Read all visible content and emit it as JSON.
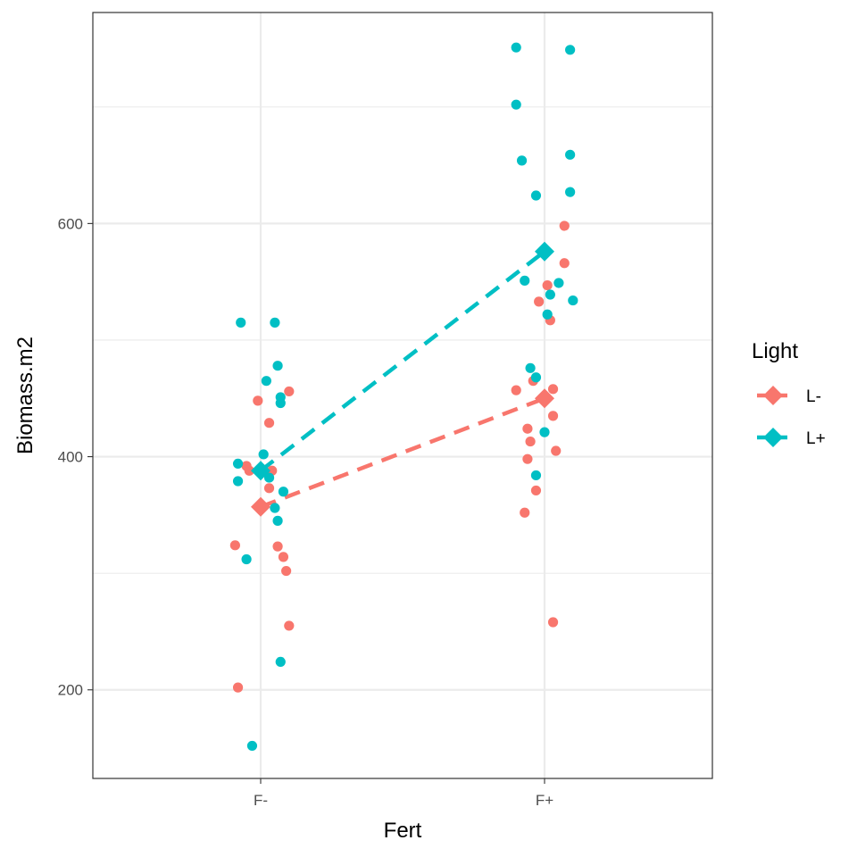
{
  "chart_data": {
    "type": "scatter",
    "title": "",
    "xlabel": "Fert",
    "ylabel": "Biomass.m2",
    "categories": [
      "F-",
      "F+"
    ],
    "ylim": [
      124,
      781
    ],
    "y_ticks": [
      200,
      400,
      600
    ],
    "y_minor_ticks": [
      300,
      500,
      700
    ],
    "grid": true,
    "legend": {
      "title": "Light",
      "placement": "right",
      "entries": [
        "L-",
        "L+"
      ]
    },
    "series": [
      {
        "name": "L-",
        "color": "#F8766D",
        "points": [
          {
            "x": "F-",
            "jitter": -0.09,
            "y": 324
          },
          {
            "x": "F-",
            "jitter": -0.08,
            "y": 202
          },
          {
            "x": "F-",
            "jitter": -0.05,
            "y": 392
          },
          {
            "x": "F-",
            "jitter": -0.04,
            "y": 388
          },
          {
            "x": "F-",
            "jitter": -0.01,
            "y": 448
          },
          {
            "x": "F-",
            "jitter": 0.03,
            "y": 373
          },
          {
            "x": "F-",
            "jitter": 0.03,
            "y": 429
          },
          {
            "x": "F-",
            "jitter": 0.04,
            "y": 388
          },
          {
            "x": "F-",
            "jitter": 0.06,
            "y": 323
          },
          {
            "x": "F-",
            "jitter": 0.08,
            "y": 314
          },
          {
            "x": "F-",
            "jitter": 0.09,
            "y": 302
          },
          {
            "x": "F-",
            "jitter": 0.1,
            "y": 456
          },
          {
            "x": "F-",
            "jitter": 0.1,
            "y": 255
          },
          {
            "x": "F+",
            "jitter": -0.1,
            "y": 457
          },
          {
            "x": "F+",
            "jitter": -0.07,
            "y": 352
          },
          {
            "x": "F+",
            "jitter": -0.06,
            "y": 424
          },
          {
            "x": "F+",
            "jitter": -0.06,
            "y": 398
          },
          {
            "x": "F+",
            "jitter": -0.05,
            "y": 413
          },
          {
            "x": "F+",
            "jitter": -0.04,
            "y": 465
          },
          {
            "x": "F+",
            "jitter": -0.03,
            "y": 371
          },
          {
            "x": "F+",
            "jitter": -0.02,
            "y": 533
          },
          {
            "x": "F+",
            "jitter": 0.01,
            "y": 547
          },
          {
            "x": "F+",
            "jitter": 0.02,
            "y": 517
          },
          {
            "x": "F+",
            "jitter": 0.03,
            "y": 458
          },
          {
            "x": "F+",
            "jitter": 0.03,
            "y": 258
          },
          {
            "x": "F+",
            "jitter": 0.03,
            "y": 435
          },
          {
            "x": "F+",
            "jitter": 0.04,
            "y": 405
          },
          {
            "x": "F+",
            "jitter": 0.07,
            "y": 566
          },
          {
            "x": "F+",
            "jitter": 0.07,
            "y": 598
          }
        ],
        "means": [
          {
            "x": "F-",
            "y": 357
          },
          {
            "x": "F+",
            "y": 450
          }
        ]
      },
      {
        "name": "L+",
        "color": "#00BFC4",
        "points": [
          {
            "x": "F-",
            "jitter": -0.08,
            "y": 394
          },
          {
            "x": "F-",
            "jitter": -0.08,
            "y": 379
          },
          {
            "x": "F-",
            "jitter": -0.07,
            "y": 515
          },
          {
            "x": "F-",
            "jitter": -0.05,
            "y": 312
          },
          {
            "x": "F-",
            "jitter": -0.03,
            "y": 152
          },
          {
            "x": "F-",
            "jitter": 0.01,
            "y": 402
          },
          {
            "x": "F-",
            "jitter": 0.02,
            "y": 465
          },
          {
            "x": "F-",
            "jitter": 0.03,
            "y": 382
          },
          {
            "x": "F-",
            "jitter": 0.05,
            "y": 356
          },
          {
            "x": "F-",
            "jitter": 0.05,
            "y": 515
          },
          {
            "x": "F-",
            "jitter": 0.06,
            "y": 478
          },
          {
            "x": "F-",
            "jitter": 0.06,
            "y": 345
          },
          {
            "x": "F-",
            "jitter": 0.07,
            "y": 451
          },
          {
            "x": "F-",
            "jitter": 0.07,
            "y": 446
          },
          {
            "x": "F-",
            "jitter": 0.07,
            "y": 224
          },
          {
            "x": "F-",
            "jitter": 0.08,
            "y": 370
          },
          {
            "x": "F+",
            "jitter": -0.1,
            "y": 751
          },
          {
            "x": "F+",
            "jitter": -0.1,
            "y": 702
          },
          {
            "x": "F+",
            "jitter": -0.08,
            "y": 654
          },
          {
            "x": "F+",
            "jitter": -0.07,
            "y": 551
          },
          {
            "x": "F+",
            "jitter": -0.05,
            "y": 476
          },
          {
            "x": "F+",
            "jitter": -0.03,
            "y": 624
          },
          {
            "x": "F+",
            "jitter": -0.03,
            "y": 384
          },
          {
            "x": "F+",
            "jitter": -0.03,
            "y": 468
          },
          {
            "x": "F+",
            "jitter": 0.0,
            "y": 421
          },
          {
            "x": "F+",
            "jitter": 0.01,
            "y": 522
          },
          {
            "x": "F+",
            "jitter": 0.02,
            "y": 539
          },
          {
            "x": "F+",
            "jitter": 0.05,
            "y": 549
          },
          {
            "x": "F+",
            "jitter": 0.09,
            "y": 749
          },
          {
            "x": "F+",
            "jitter": 0.09,
            "y": 659
          },
          {
            "x": "F+",
            "jitter": 0.09,
            "y": 627
          },
          {
            "x": "F+",
            "jitter": 0.1,
            "y": 534
          }
        ],
        "means": [
          {
            "x": "F-",
            "y": 388
          },
          {
            "x": "F+",
            "y": 576
          }
        ]
      }
    ]
  }
}
